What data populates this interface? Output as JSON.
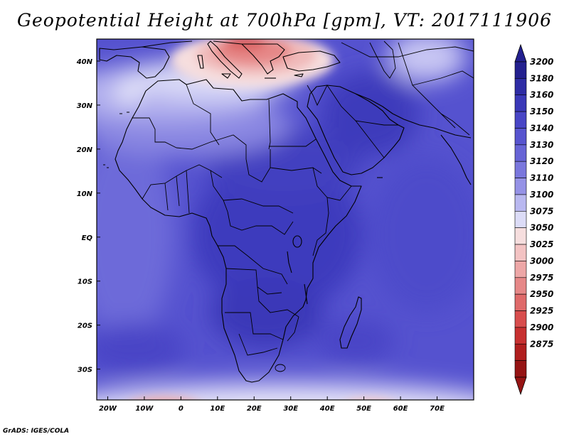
{
  "title": "Geopotential Height at 700hPa [gpm], VT: 2017111906",
  "credit": "GrADS: IGES/COLA",
  "map": {
    "lat_range": [
      -37,
      45
    ],
    "lon_range": [
      -23,
      80
    ],
    "lat_ticks": [
      {
        "value": 40,
        "label": "40N"
      },
      {
        "value": 30,
        "label": "30N"
      },
      {
        "value": 20,
        "label": "20N"
      },
      {
        "value": 10,
        "label": "10N"
      },
      {
        "value": 0,
        "label": "EQ"
      },
      {
        "value": -10,
        "label": "10S"
      },
      {
        "value": -20,
        "label": "20S"
      },
      {
        "value": -30,
        "label": "30S"
      }
    ],
    "lon_ticks": [
      {
        "value": -20,
        "label": "20W"
      },
      {
        "value": -10,
        "label": "10W"
      },
      {
        "value": 0,
        "label": "0"
      },
      {
        "value": 10,
        "label": "10E"
      },
      {
        "value": 20,
        "label": "20E"
      },
      {
        "value": 30,
        "label": "30E"
      },
      {
        "value": 40,
        "label": "40E"
      },
      {
        "value": 50,
        "label": "50E"
      },
      {
        "value": 60,
        "label": "60E"
      },
      {
        "value": 70,
        "label": "70E"
      }
    ]
  },
  "colorbar": {
    "levels": [
      "3200",
      "3180",
      "3160",
      "3150",
      "3140",
      "3130",
      "3120",
      "3110",
      "3100",
      "3075",
      "3050",
      "3025",
      "3000",
      "2975",
      "2950",
      "2925",
      "2900",
      "2875"
    ],
    "colors": [
      "#23208f",
      "#2e2ca5",
      "#3a38b8",
      "#4845c6",
      "#5754cf",
      "#6764d6",
      "#7a77dd",
      "#9592e6",
      "#b9b8f0",
      "#dcdcf7",
      "#f6dede",
      "#f3c3c3",
      "#eda7a7",
      "#e68888",
      "#df6a6a",
      "#d84d4d",
      "#c73030",
      "#b01e1e",
      "#961414"
    ]
  }
}
